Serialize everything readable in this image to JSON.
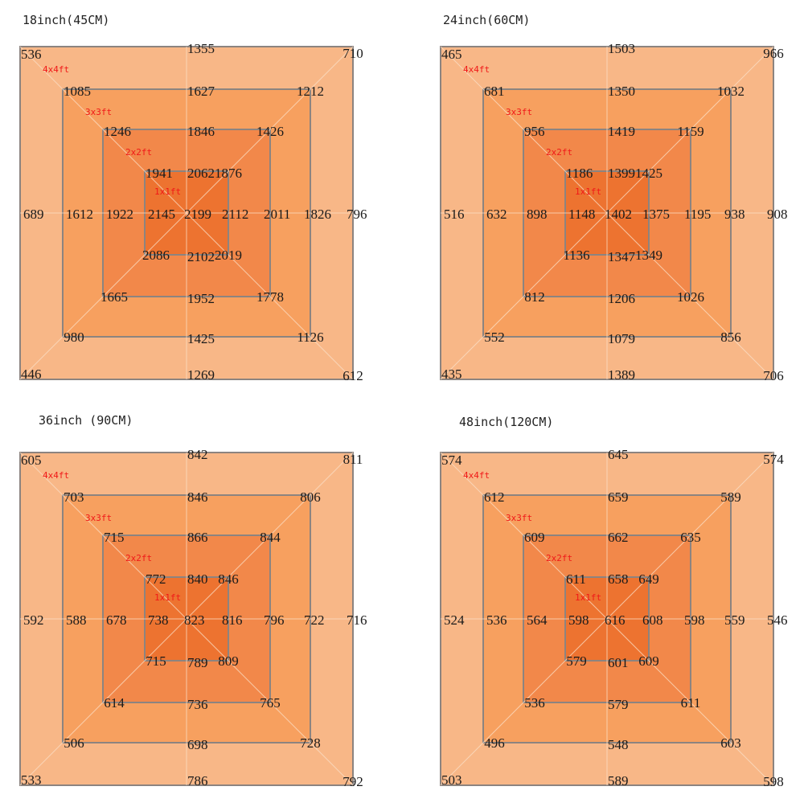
{
  "ring_names": [
    "4x4ft",
    "3x3ft",
    "2x2ft",
    "1x1ft"
  ],
  "colors": {
    "ring_fill": [
      "#f8b787",
      "#f7a05f",
      "#f2884a",
      "#ed7330"
    ],
    "ring_border": "#8c8480",
    "ring_label": "#f01818",
    "guide_line": "#fbe0c8"
  },
  "panels": [
    {
      "title": "18inch(45CM)",
      "rings": [
        {
          "tl": "536",
          "t": "1355",
          "tr": "710",
          "l": "689",
          "r": "796",
          "bl": "446",
          "b": "1269",
          "br": "612"
        },
        {
          "tl": "1085",
          "t": "1627",
          "tr": "1212",
          "l": "1612",
          "r": "1826",
          "bl": "980",
          "b": "1425",
          "br": "1126"
        },
        {
          "tl": "1246",
          "t": "1846",
          "tr": "1426",
          "l": "1922",
          "r": "2011",
          "bl": "1665",
          "b": "1952",
          "br": "1778"
        },
        {
          "tl": "1941",
          "t": "2062",
          "tr": "1876",
          "l": "2145",
          "r": "2112",
          "bl": "2086",
          "b": "2102",
          "br": "2019"
        }
      ],
      "center": "2199"
    },
    {
      "title": "24inch(60CM)",
      "rings": [
        {
          "tl": "465",
          "t": "1503",
          "tr": "966",
          "l": "516",
          "r": "908",
          "bl": "435",
          "b": "1389",
          "br": "706"
        },
        {
          "tl": "681",
          "t": "1350",
          "tr": "1032",
          "l": "632",
          "r": "938",
          "bl": "552",
          "b": "1079",
          "br": "856"
        },
        {
          "tl": "956",
          "t": "1419",
          "tr": "1159",
          "l": "898",
          "r": "1195",
          "bl": "812",
          "b": "1206",
          "br": "1026"
        },
        {
          "tl": "1186",
          "t": "1399",
          "tr": "1425",
          "l": "1148",
          "r": "1375",
          "bl": "1136",
          "b": "1347",
          "br": "1349"
        }
      ],
      "center": "1402"
    },
    {
      "title": "36inch (90CM)",
      "rings": [
        {
          "tl": "605",
          "t": "842",
          "tr": "811",
          "l": "592",
          "r": "716",
          "bl": "533",
          "b": "786",
          "br": "792"
        },
        {
          "tl": "703",
          "t": "846",
          "tr": "806",
          "l": "588",
          "r": "722",
          "bl": "506",
          "b": "698",
          "br": "728"
        },
        {
          "tl": "715",
          "t": "866",
          "tr": "844",
          "l": "678",
          "r": "796",
          "bl": "614",
          "b": "736",
          "br": "765"
        },
        {
          "tl": "772",
          "t": "840",
          "tr": "846",
          "l": "738",
          "r": "816",
          "bl": "715",
          "b": "789",
          "br": "809"
        }
      ],
      "center": "823"
    },
    {
      "title": "48inch(120CM)",
      "rings": [
        {
          "tl": "574",
          "t": "645",
          "tr": "574",
          "l": "524",
          "r": "546",
          "bl": "503",
          "b": "589",
          "br": "598"
        },
        {
          "tl": "612",
          "t": "659",
          "tr": "589",
          "l": "536",
          "r": "559",
          "bl": "496",
          "b": "548",
          "br": "603"
        },
        {
          "tl": "609",
          "t": "662",
          "tr": "635",
          "l": "564",
          "r": "598",
          "bl": "536",
          "b": "579",
          "br": "611"
        },
        {
          "tl": "611",
          "t": "658",
          "tr": "649",
          "l": "598",
          "r": "608",
          "bl": "579",
          "b": "601",
          "br": "609"
        }
      ],
      "center": "616"
    }
  ]
}
